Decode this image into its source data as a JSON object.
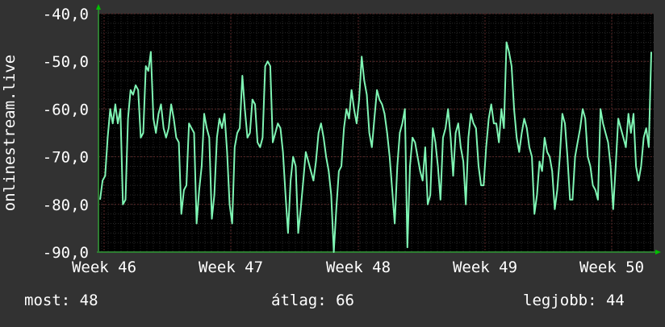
{
  "chart_data": {
    "type": "line",
    "title": "",
    "ylabel": "onlinestream.live",
    "xlabel": "",
    "x_ticks": [
      "Week 46",
      "Week 47",
      "Week 48",
      "Week 49",
      "Week 50"
    ],
    "y_ticks": [
      "-40,0",
      "-50,0",
      "-60,0",
      "-70,0",
      "-80,0",
      "-90,0"
    ],
    "ylim": [
      -90,
      -40
    ],
    "grid": true,
    "series": [
      {
        "name": "",
        "values": [
          -79,
          -75,
          -74,
          -66,
          -60,
          -63,
          -59,
          -63,
          -60,
          -80,
          -79,
          -62,
          -56,
          -57,
          -55,
          -56,
          -66,
          -65,
          -51,
          -52,
          -48,
          -62,
          -65,
          -61,
          -59,
          -64,
          -66,
          -64,
          -59,
          -62,
          -66,
          -67,
          -82,
          -77,
          -76,
          -63,
          -64,
          -65,
          -84,
          -77,
          -72,
          -61,
          -64,
          -66,
          -83,
          -78,
          -66,
          -62,
          -64,
          -61,
          -69,
          -80,
          -84,
          -68,
          -65,
          -64,
          -53,
          -60,
          -66,
          -65,
          -58,
          -59,
          -67,
          -68,
          -66,
          -51,
          -50,
          -51,
          -67,
          -65,
          -63,
          -64,
          -69,
          -78,
          -86,
          -75,
          -70,
          -72,
          -86,
          -81,
          -75,
          -69,
          -71,
          -73,
          -75,
          -71,
          -65,
          -63,
          -66,
          -70,
          -73,
          -78,
          -90,
          -81,
          -73,
          -72,
          -64,
          -60,
          -62,
          -56,
          -60,
          -63,
          -58,
          -49,
          -54,
          -57,
          -65,
          -68,
          -62,
          -56,
          -58,
          -59,
          -61,
          -65,
          -70,
          -77,
          -84,
          -72,
          -65,
          -63,
          -60,
          -89,
          -72,
          -66,
          -67,
          -70,
          -73,
          -75,
          -68,
          -80,
          -78,
          -64,
          -67,
          -72,
          -79,
          -66,
          -64,
          -60,
          -66,
          -74,
          -65,
          -63,
          -68,
          -71,
          -80,
          -66,
          -61,
          -63,
          -64,
          -72,
          -76,
          -76,
          -68,
          -62,
          -59,
          -63,
          -63,
          -67,
          -60,
          -64,
          -46,
          -48,
          -51,
          -60,
          -66,
          -69,
          -65,
          -62,
          -64,
          -68,
          -70,
          -82,
          -78,
          -71,
          -73,
          -66,
          -69,
          -70,
          -73,
          -81,
          -77,
          -70,
          -61,
          -63,
          -70,
          -79,
          -79,
          -70,
          -67,
          -64,
          -60,
          -62,
          -70,
          -72,
          -76,
          -77,
          -79,
          -60,
          -63,
          -65,
          -67,
          -72,
          -81,
          -72,
          -62,
          -64,
          -66,
          -68,
          -61,
          -65,
          -61,
          -72,
          -75,
          -72,
          -66,
          -64,
          -68,
          -48
        ]
      }
    ],
    "line_color": "#7ff5b4",
    "background": "#000000",
    "grid_color": "#5a2828"
  },
  "stats": {
    "most": "most: 48",
    "atlag": "átlag: 66",
    "legjobb": "legjobb: 44"
  }
}
